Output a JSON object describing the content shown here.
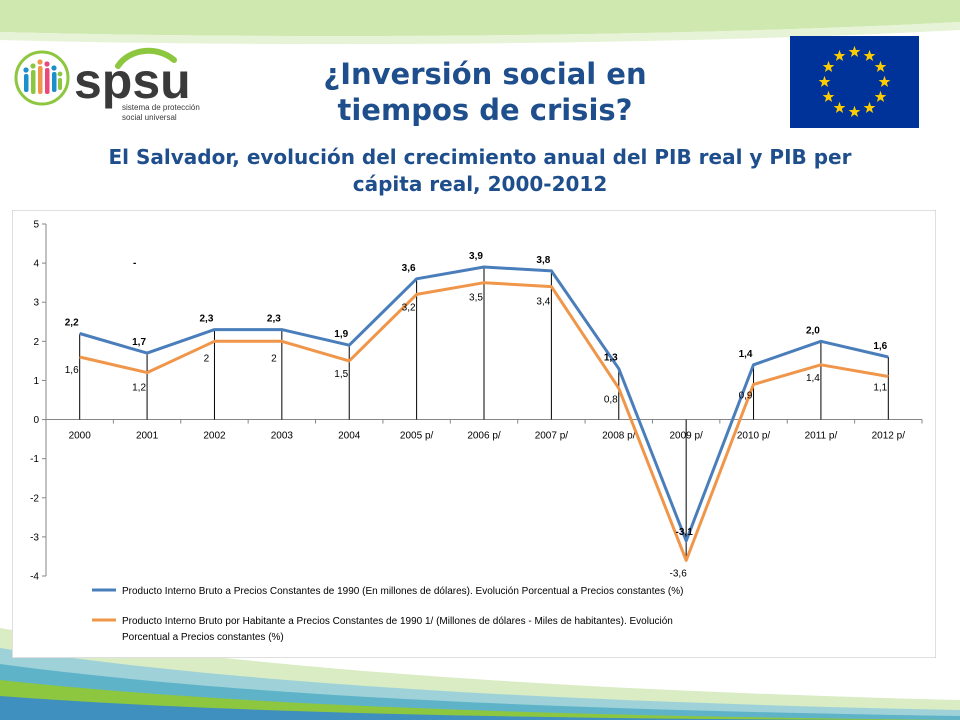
{
  "slide": {
    "title_line1": "¿Inversión social en",
    "title_line2": "tiempos de crisis?",
    "subtitle_line1": "El Salvador, evolución del crecimiento anual del PIB real y PIB per",
    "subtitle_line2": "cápita real, 2000-2012"
  },
  "logo": {
    "wordmark": "spsu",
    "tagline_line1": "sistema de protección",
    "tagline_line2": "social universal"
  },
  "flag": {
    "name": "european-union-flag-icon"
  },
  "colors": {
    "title": "#1f4e8c",
    "series1": "#4a7ebb",
    "series2": "#f0964a",
    "logo_green": "#8dc63f",
    "logo_blue": "#1a8fc9",
    "logo_dark": "#3a3a3a",
    "eu_blue": "#003399",
    "eu_star": "#ffcc00"
  },
  "chart_data": {
    "type": "line",
    "categories": [
      "2000",
      "2001",
      "2002",
      "2003",
      "2004",
      "2005 p/",
      "2006 p/",
      "2007 p/",
      "2008 p/",
      "2009 p/",
      "2010 p/",
      "2011 p/",
      "2012 p/"
    ],
    "ylim": [
      -4,
      5
    ],
    "yticks": [
      "5",
      "4",
      "3",
      "2",
      "1",
      "0",
      "-1",
      "-2",
      "-3",
      "-4"
    ],
    "grid": false,
    "legend_position": "bottom",
    "series": [
      {
        "name": "Producto Interno Bruto a Precios Constantes de 1990 (En millones de dólares). Evolución Porcentual a Precios constantes (%)",
        "values": [
          2.2,
          1.7,
          2.3,
          2.3,
          1.9,
          3.6,
          3.9,
          3.8,
          1.3,
          -3.1,
          1.4,
          2.0,
          1.6
        ],
        "labels": [
          "2,2",
          "1,7",
          "2,3",
          "2,3",
          "1,9",
          "3,6",
          "3,9",
          "3,8",
          "1,3",
          "-3,1",
          "1,4",
          "2,0",
          "1,6"
        ]
      },
      {
        "name": "Producto Interno Bruto por Habitante a Precios Constantes de 1990 1/ (Millones de dólares - Miles de habitantes). Evolución Porcentual a Precios constantes (%)",
        "values": [
          1.6,
          1.2,
          2.0,
          2.0,
          1.5,
          3.2,
          3.5,
          3.4,
          0.8,
          -3.6,
          0.9,
          1.4,
          1.1
        ],
        "labels": [
          "1,6",
          "1,2",
          "2",
          "2",
          "1,5",
          "3,2",
          "3,5",
          "3,4",
          "0,8",
          "-3,6",
          "0,9",
          "1,4",
          "1,1"
        ]
      }
    ],
    "annotation": "-"
  }
}
